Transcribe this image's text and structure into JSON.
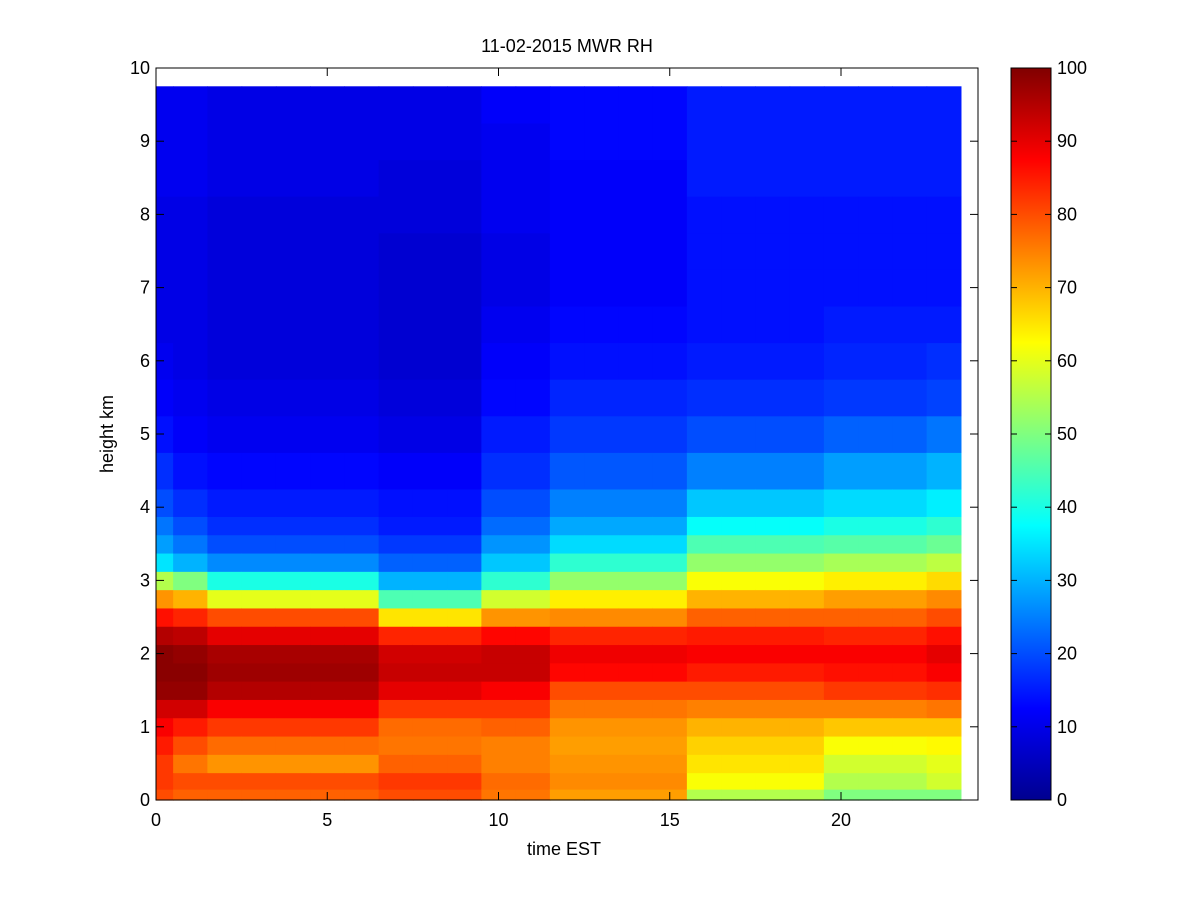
{
  "chart_data": {
    "type": "heatmap",
    "title": "11-02-2015 MWR RH",
    "xlabel": "time EST",
    "ylabel": "height km",
    "xlim": [
      0,
      24
    ],
    "ylim": [
      0,
      10
    ],
    "xticks": [
      0,
      5,
      10,
      15,
      20
    ],
    "yticks": [
      0,
      1,
      2,
      3,
      4,
      5,
      6,
      7,
      8,
      9,
      10
    ],
    "x_hours": [
      0,
      1,
      2,
      3,
      4,
      5,
      6,
      7,
      8,
      9,
      10,
      11,
      12,
      13,
      14,
      15,
      16,
      17,
      18,
      19,
      20,
      21,
      22,
      23
    ],
    "y_km": [
      0.05,
      0.25,
      0.5,
      0.75,
      1.0,
      1.25,
      1.5,
      1.75,
      2.0,
      2.25,
      2.5,
      2.75,
      3.0,
      3.25,
      3.5,
      3.75,
      4.0,
      4.5,
      5.0,
      5.5,
      6.0,
      6.5,
      7.0,
      7.5,
      8.0,
      8.5,
      9.0,
      9.5
    ],
    "y_top_km": 9.75,
    "colorbar": {
      "colormap": "jet",
      "range": [
        0,
        100
      ],
      "ticks": [
        0,
        10,
        20,
        30,
        40,
        50,
        60,
        70,
        80,
        90,
        100
      ]
    },
    "profile_groups": {
      "0": [
        80,
        82,
        82,
        85,
        88,
        92,
        98,
        99,
        99,
        95,
        86,
        73,
        55,
        35,
        28,
        24,
        20,
        17,
        14,
        12,
        11,
        10,
        10,
        10,
        10,
        11,
        11,
        11
      ],
      "1": [
        78,
        80,
        76,
        80,
        85,
        92,
        98,
        99,
        98,
        94,
        84,
        70,
        50,
        30,
        24,
        20,
        17,
        14,
        12,
        11,
        10,
        10,
        10,
        10,
        10,
        11,
        11,
        11
      ],
      "2": [
        78,
        80,
        73,
        77,
        82,
        88,
        95,
        97,
        96,
        90,
        80,
        60,
        40,
        26,
        20,
        17,
        15,
        13,
        11,
        10,
        9,
        9,
        9,
        9,
        9,
        10,
        10,
        10
      ],
      "7": [
        80,
        82,
        78,
        76,
        77,
        82,
        90,
        93,
        92,
        84,
        65,
        45,
        30,
        22,
        18,
        15,
        14,
        12,
        10,
        9,
        8,
        8,
        8,
        8,
        9,
        9,
        10,
        10
      ],
      "10": [
        76,
        77,
        75,
        75,
        78,
        82,
        88,
        93,
        93,
        87,
        73,
        58,
        42,
        32,
        27,
        23,
        20,
        17,
        15,
        13,
        12,
        11,
        10,
        10,
        11,
        11,
        11,
        12
      ],
      "12": [
        72,
        74,
        73,
        72,
        73,
        76,
        80,
        87,
        89,
        84,
        74,
        64,
        52,
        42,
        34,
        29,
        25,
        21,
        18,
        16,
        14,
        13,
        12,
        12,
        12,
        12,
        13,
        13
      ],
      "16": [
        55,
        62,
        65,
        67,
        70,
        75,
        80,
        85,
        88,
        85,
        78,
        70,
        62,
        52,
        45,
        38,
        32,
        25,
        20,
        17,
        15,
        14,
        14,
        14,
        14,
        15,
        15,
        15
      ],
      "20": [
        50,
        55,
        58,
        62,
        68,
        75,
        82,
        86,
        88,
        84,
        78,
        72,
        64,
        54,
        46,
        40,
        34,
        28,
        22,
        18,
        16,
        15,
        14,
        14,
        14,
        15,
        15,
        15
      ],
      "23": [
        50,
        58,
        60,
        63,
        68,
        76,
        83,
        88,
        90,
        86,
        80,
        74,
        66,
        56,
        48,
        42,
        36,
        30,
        24,
        19,
        17,
        15,
        14,
        14,
        14,
        15,
        15,
        15
      ]
    },
    "column_groups": [
      {
        "from": 0,
        "to": 0,
        "profile": "0"
      },
      {
        "from": 1,
        "to": 1,
        "profile": "1"
      },
      {
        "from": 2,
        "to": 6,
        "profile": "2"
      },
      {
        "from": 7,
        "to": 9,
        "profile": "7"
      },
      {
        "from": 10,
        "to": 11,
        "profile": "10"
      },
      {
        "from": 12,
        "to": 15,
        "profile": "12"
      },
      {
        "from": 16,
        "to": 19,
        "profile": "16"
      },
      {
        "from": 20,
        "to": 22,
        "profile": "20"
      },
      {
        "from": 23,
        "to": 23,
        "profile": "23"
      }
    ]
  }
}
